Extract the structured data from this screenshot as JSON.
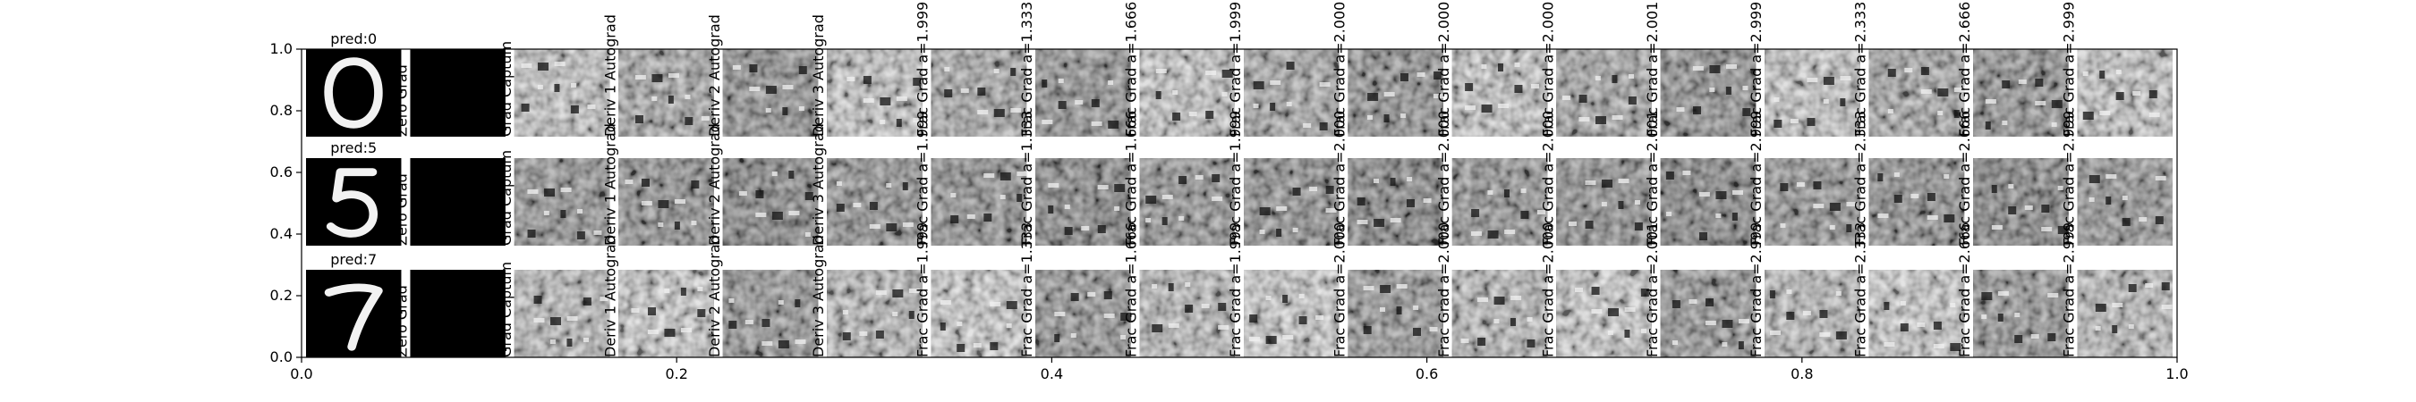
{
  "chart_data": {
    "type": "heatmap",
    "title": "",
    "xlabel": "",
    "ylabel": "",
    "xlim": [
      0.0,
      1.0
    ],
    "ylim": [
      0.0,
      1.0
    ],
    "x_ticks": [
      "0.0",
      "0.2",
      "0.4",
      "0.6",
      "0.8",
      "1.0"
    ],
    "x_tick_values": [
      0.0,
      0.2,
      0.4,
      0.6,
      0.8,
      1.0
    ],
    "y_ticks": [
      "0.0",
      "0.2",
      "0.4",
      "0.6",
      "0.8",
      "1.0"
    ],
    "y_tick_values": [
      0.0,
      0.2,
      0.4,
      0.6,
      0.8,
      1.0
    ],
    "grid": false,
    "colormap": "gray",
    "rows": [
      {
        "pred": "pred:0",
        "digit": "0"
      },
      {
        "pred": "pred:5",
        "digit": "5"
      },
      {
        "pred": "pred:7",
        "digit": "7"
      }
    ],
    "columns": [
      {
        "kind": "input"
      },
      {
        "kind": "grad",
        "label": "Zero Grad",
        "zero": true
      },
      {
        "kind": "grad",
        "label": "Grad Captum"
      },
      {
        "kind": "grad",
        "label": "Deriv 1 Autograd"
      },
      {
        "kind": "grad",
        "label": "Deriv 2 Autograd"
      },
      {
        "kind": "grad",
        "label": "Deriv 3 Autograd"
      },
      {
        "kind": "grad",
        "label": "Frac Grad a=1.999"
      },
      {
        "kind": "grad",
        "label": "Frac Grad a=1.333"
      },
      {
        "kind": "grad",
        "label": "Frac Grad a=1.666"
      },
      {
        "kind": "grad",
        "label": "Frac Grad a=1.999"
      },
      {
        "kind": "grad",
        "label": "Frac Grad a=2.000"
      },
      {
        "kind": "grad",
        "label": "Frac Grad a=2.000"
      },
      {
        "kind": "grad",
        "label": "Frac Grad a=2.000"
      },
      {
        "kind": "grad",
        "label": "Frac Grad a=2.001"
      },
      {
        "kind": "grad",
        "label": "Frac Grad a=2.999"
      },
      {
        "kind": "grad",
        "label": "Frac Grad a=2.333"
      },
      {
        "kind": "grad",
        "label": "Frac Grad a=2.666"
      },
      {
        "kind": "grad",
        "label": "Frac Grad a=2.999"
      }
    ]
  }
}
